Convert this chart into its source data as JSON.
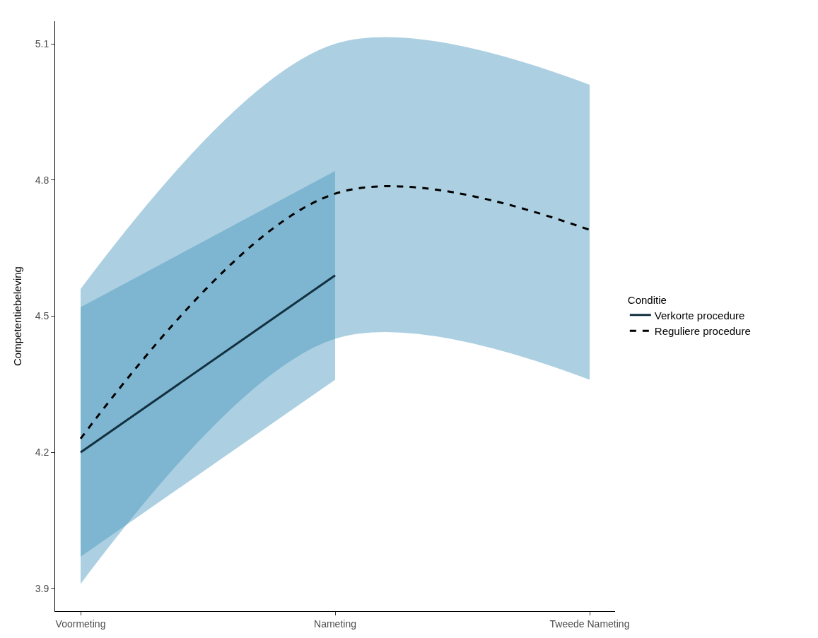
{
  "chart_data": {
    "type": "line",
    "ylabel": "Competentiebeleving",
    "legend_title": "Conditie",
    "categories": [
      "Voormeting",
      "Nameting",
      "Tweede Nameting"
    ],
    "series": [
      {
        "name": "Verkorte procedure",
        "color": "#12303f",
        "line_style": "solid",
        "values": [
          4.2,
          4.59,
          null
        ],
        "lower": [
          3.97,
          4.36,
          null
        ],
        "upper": [
          4.52,
          4.82,
          null
        ]
      },
      {
        "name": "Reguliere procedure",
        "color": "#000000",
        "line_style": "dashed",
        "values": [
          4.23,
          4.77,
          4.69
        ],
        "lower": [
          3.91,
          4.45,
          4.36
        ],
        "upper": [
          4.56,
          5.1,
          5.01
        ]
      }
    ],
    "ylim": [
      3.85,
      5.15
    ],
    "yticks": [
      3.9,
      4.2,
      4.5,
      4.8,
      5.1
    ],
    "legend": "right"
  }
}
